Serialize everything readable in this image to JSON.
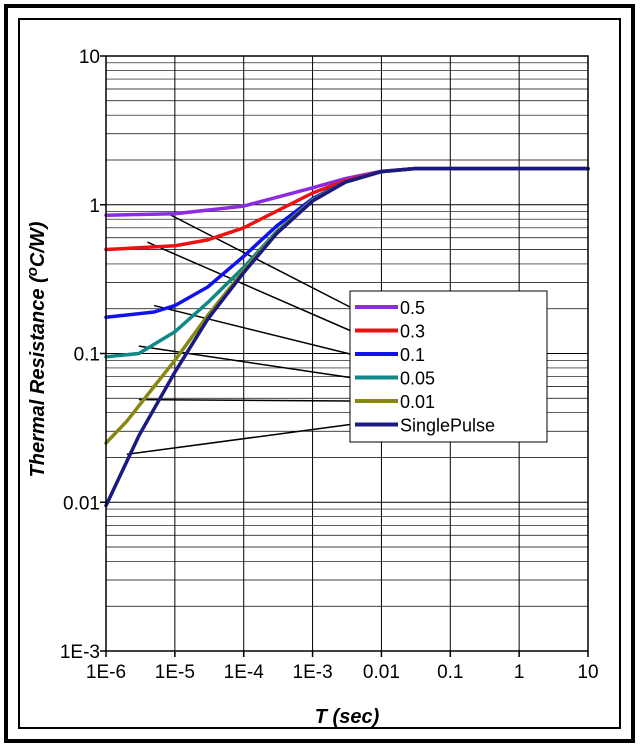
{
  "chart_data": {
    "type": "line",
    "xlabel": "T (sec)",
    "ylabel_prefix": "Thermal Resistance (",
    "ylabel_sup": "o",
    "ylabel_suffix": "C/W)",
    "x_scale": "log",
    "y_scale": "log",
    "xlim": [
      1e-06,
      10
    ],
    "ylim": [
      0.001,
      10
    ],
    "x_ticks": [
      1e-06,
      1e-05,
      0.0001,
      0.001,
      0.01,
      0.1,
      1,
      10
    ],
    "x_tick_labels": [
      "1E-6",
      "1E-5",
      "1E-4",
      "1E-3",
      "0.01",
      "0.1",
      "1",
      "10"
    ],
    "y_ticks": [
      0.001,
      0.01,
      0.1,
      1,
      10
    ],
    "y_tick_labels": [
      "1E-3",
      "0.01",
      "0.1",
      "1",
      "10"
    ],
    "grid": true,
    "legend_position": "right-middle",
    "series": [
      {
        "name": "0.5",
        "color": "#8B2BE2",
        "x": [
          1e-06,
          1e-05,
          0.0001,
          0.001,
          0.003,
          0.01,
          0.03,
          0.1,
          1,
          10
        ],
        "y": [
          0.85,
          0.87,
          0.98,
          1.3,
          1.5,
          1.68,
          1.75,
          1.75,
          1.75,
          1.75
        ]
      },
      {
        "name": "0.3",
        "color": "#EE1111",
        "x": [
          1e-06,
          1e-05,
          3e-05,
          0.0001,
          0.001,
          0.003,
          0.01,
          0.03,
          0.1,
          1,
          10
        ],
        "y": [
          0.5,
          0.53,
          0.58,
          0.7,
          1.2,
          1.45,
          1.67,
          1.75,
          1.75,
          1.75,
          1.75
        ]
      },
      {
        "name": "0.1",
        "color": "#1111EE",
        "x": [
          1e-06,
          5e-06,
          1e-05,
          3e-05,
          0.0001,
          0.0003,
          0.001,
          0.003,
          0.01,
          0.03,
          0.1,
          1,
          10
        ],
        "y": [
          0.175,
          0.19,
          0.21,
          0.28,
          0.45,
          0.72,
          1.1,
          1.42,
          1.67,
          1.75,
          1.75,
          1.75,
          1.75
        ]
      },
      {
        "name": "0.05",
        "color": "#118888",
        "x": [
          1e-06,
          3e-06,
          1e-05,
          3e-05,
          0.0001,
          0.0003,
          0.001,
          0.003,
          0.01,
          0.03,
          0.1,
          1,
          10
        ],
        "y": [
          0.095,
          0.1,
          0.14,
          0.22,
          0.38,
          0.66,
          1.08,
          1.42,
          1.67,
          1.75,
          1.75,
          1.75,
          1.75
        ]
      },
      {
        "name": "0.01",
        "color": "#888811",
        "x": [
          1e-06,
          2e-06,
          5e-06,
          1e-05,
          3e-05,
          0.0001,
          0.0003,
          0.001,
          0.003,
          0.01,
          0.03,
          0.1,
          1,
          10
        ],
        "y": [
          0.025,
          0.035,
          0.06,
          0.09,
          0.18,
          0.36,
          0.65,
          1.07,
          1.42,
          1.67,
          1.75,
          1.75,
          1.75,
          1.75
        ]
      },
      {
        "name": "SinglePulse",
        "color": "#1A1A80",
        "x": [
          1e-06,
          3e-06,
          1e-05,
          3e-05,
          0.0001,
          0.0003,
          0.001,
          0.003,
          0.01,
          0.03,
          0.1,
          1,
          10
        ],
        "y": [
          0.0095,
          0.028,
          0.075,
          0.17,
          0.35,
          0.64,
          1.06,
          1.42,
          1.67,
          1.75,
          1.75,
          1.75,
          1.75
        ]
      }
    ],
    "annotation_lines": [
      {
        "from": [
          8e-06,
          0.87
        ],
        "to_legend_index": 0
      },
      {
        "from": [
          4e-06,
          0.56
        ],
        "to_legend_index": 1
      },
      {
        "from": [
          5e-06,
          0.21
        ],
        "to_legend_index": 2
      },
      {
        "from": [
          3e-06,
          0.112
        ],
        "to_legend_index": 3
      },
      {
        "from": [
          3e-06,
          0.049
        ],
        "to_legend_index": 4
      },
      {
        "from": [
          2e-06,
          0.021
        ],
        "to_legend_index": 5
      }
    ]
  }
}
